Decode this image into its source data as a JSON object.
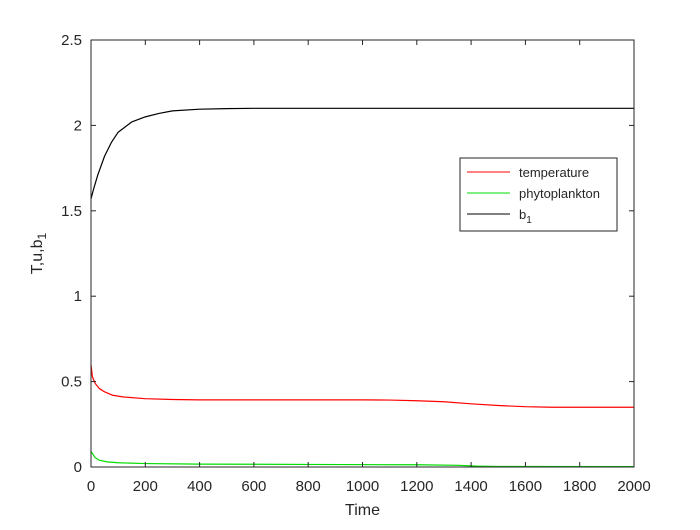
{
  "chart_data": {
    "type": "line",
    "xlabel": "Time",
    "ylabel": "T,u,b",
    "ylabel_subscript": "1",
    "xlim": [
      0,
      2000
    ],
    "ylim": [
      0,
      2.5
    ],
    "x_ticks": [
      0,
      200,
      400,
      600,
      800,
      1000,
      1200,
      1400,
      1600,
      1800,
      2000
    ],
    "y_ticks": [
      0,
      0.5,
      1,
      1.5,
      2,
      2.5
    ],
    "x_tick_labels": [
      "0",
      "200",
      "400",
      "600",
      "800",
      "1000",
      "1200",
      "1400",
      "1600",
      "1800",
      "2000"
    ],
    "y_tick_labels": [
      "0",
      "0.5",
      "1",
      "1.5",
      "2",
      "2.5"
    ],
    "grid": false,
    "legend_position": "right, upper-middle",
    "series": [
      {
        "name": "temperature",
        "color": "#ff0000",
        "points": [
          [
            0,
            0.6
          ],
          [
            5,
            0.53
          ],
          [
            15,
            0.49
          ],
          [
            30,
            0.46
          ],
          [
            50,
            0.44
          ],
          [
            80,
            0.42
          ],
          [
            120,
            0.41
          ],
          [
            200,
            0.4
          ],
          [
            300,
            0.395
          ],
          [
            400,
            0.393
          ],
          [
            600,
            0.393
          ],
          [
            800,
            0.393
          ],
          [
            1000,
            0.393
          ],
          [
            1100,
            0.392
          ],
          [
            1200,
            0.388
          ],
          [
            1300,
            0.382
          ],
          [
            1400,
            0.37
          ],
          [
            1500,
            0.36
          ],
          [
            1600,
            0.353
          ],
          [
            1700,
            0.35
          ],
          [
            1800,
            0.35
          ],
          [
            2000,
            0.35
          ]
        ]
      },
      {
        "name": "phytoplankton",
        "color": "#00dd00",
        "points": [
          [
            0,
            0.09
          ],
          [
            5,
            0.08
          ],
          [
            15,
            0.055
          ],
          [
            30,
            0.04
          ],
          [
            60,
            0.03
          ],
          [
            100,
            0.025
          ],
          [
            200,
            0.02
          ],
          [
            400,
            0.017
          ],
          [
            800,
            0.015
          ],
          [
            1200,
            0.013
          ],
          [
            1350,
            0.01
          ],
          [
            1420,
            0.005
          ],
          [
            1500,
            0.003
          ],
          [
            2000,
            0.002
          ]
        ]
      },
      {
        "name": "b",
        "name_subscript": "1",
        "color": "#000000",
        "points": [
          [
            0,
            1.57
          ],
          [
            10,
            1.63
          ],
          [
            25,
            1.71
          ],
          [
            50,
            1.82
          ],
          [
            75,
            1.9
          ],
          [
            100,
            1.96
          ],
          [
            150,
            2.02
          ],
          [
            200,
            2.05
          ],
          [
            250,
            2.07
          ],
          [
            300,
            2.085
          ],
          [
            400,
            2.095
          ],
          [
            500,
            2.098
          ],
          [
            600,
            2.1
          ],
          [
            800,
            2.1
          ],
          [
            1000,
            2.1
          ],
          [
            1500,
            2.1
          ],
          [
            2000,
            2.1
          ]
        ]
      }
    ]
  }
}
